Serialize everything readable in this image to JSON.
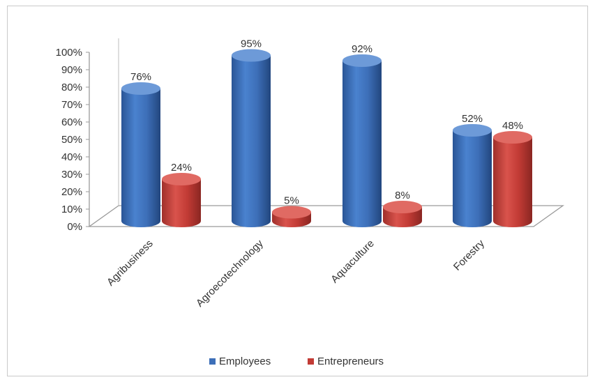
{
  "chart_data": {
    "type": "bar",
    "title": "",
    "xlabel": "",
    "ylabel": "",
    "ylim": [
      0,
      100
    ],
    "y_ticks": [
      "0%",
      "10%",
      "20%",
      "30%",
      "40%",
      "50%",
      "60%",
      "70%",
      "80%",
      "90%",
      "100%"
    ],
    "categories": [
      "Agribusiness",
      "Agroecotechnology",
      "Aquaculture",
      "Forestry"
    ],
    "series": [
      {
        "name": "Employees",
        "color": "#3d6fb8",
        "values": [
          76,
          95,
          92,
          52
        ],
        "labels": [
          "76%",
          "95%",
          "92%",
          "52%"
        ]
      },
      {
        "name": "Entrepreneurs",
        "color": "#c23b35",
        "values": [
          24,
          5,
          8,
          48
        ],
        "labels": [
          "24%",
          "5%",
          "8%",
          "48%"
        ]
      }
    ],
    "legend_position": "bottom",
    "style": "3d-cylinder"
  }
}
